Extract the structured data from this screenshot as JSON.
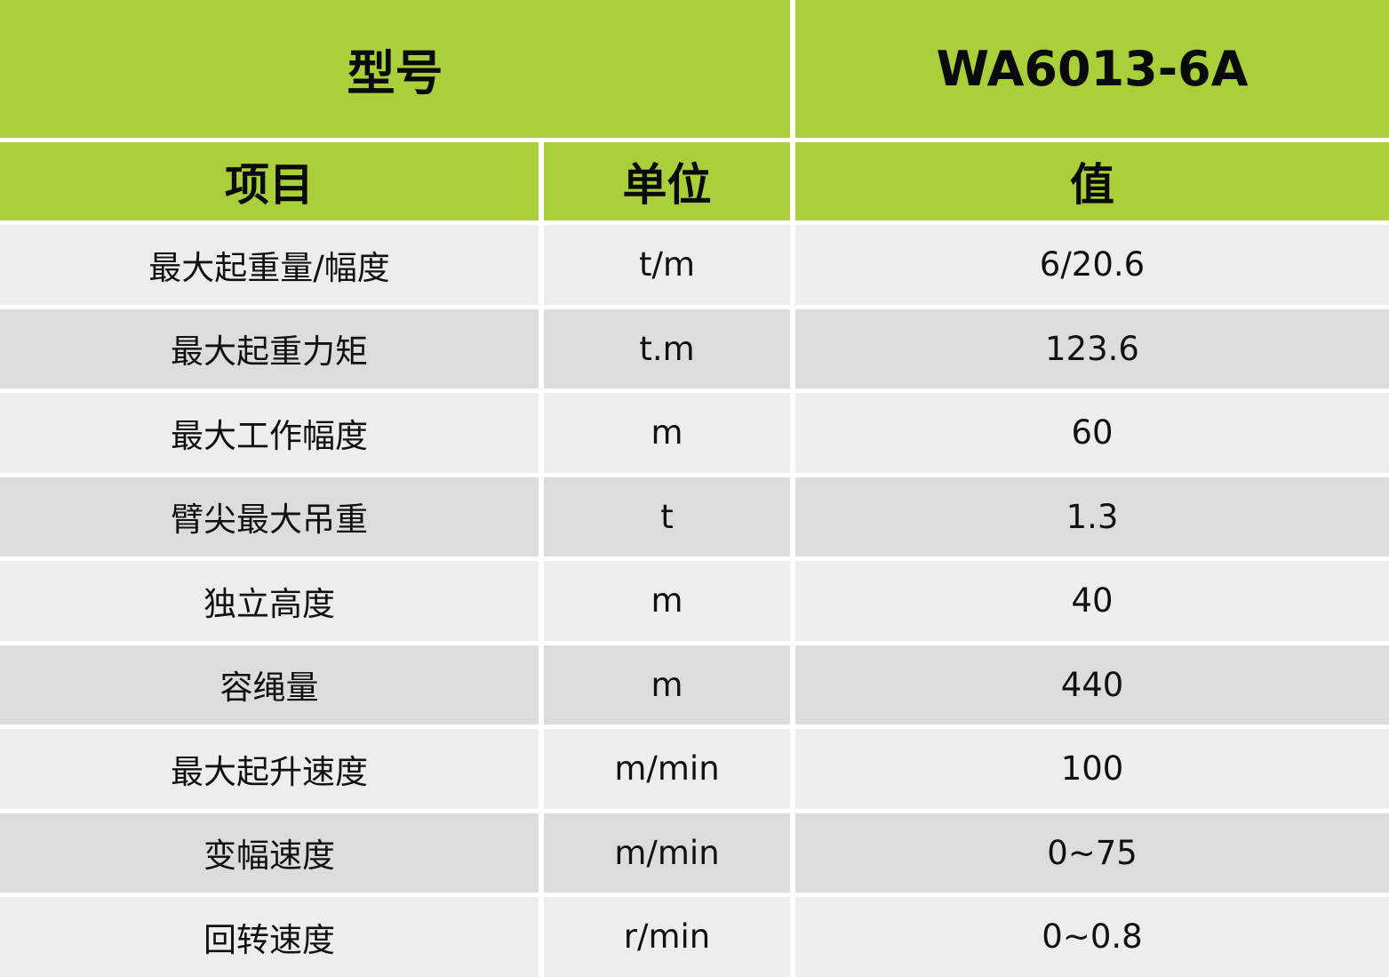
{
  "header": {
    "model_label": "型号",
    "model_value": "WA6013-6A"
  },
  "columns": {
    "item": "项目",
    "unit": "单位",
    "value": "值"
  },
  "rows": [
    {
      "item": "最大起重量/幅度",
      "unit": "t/m",
      "value": "6/20.6"
    },
    {
      "item": "最大起重力矩",
      "unit": "t.m",
      "value": "123.6"
    },
    {
      "item": "最大工作幅度",
      "unit": "m",
      "value": "60"
    },
    {
      "item": "臂尖最大吊重",
      "unit": "t",
      "value": "1.3"
    },
    {
      "item": "独立高度",
      "unit": "m",
      "value": "40"
    },
    {
      "item": "容绳量",
      "unit": "m",
      "value": "440"
    },
    {
      "item": "最大起升速度",
      "unit": "m/min",
      "value": "100"
    },
    {
      "item": "变幅速度",
      "unit": "m/min",
      "value": "0~75"
    },
    {
      "item": "回转速度",
      "unit": "r/min",
      "value": "0~0.8"
    }
  ],
  "colors": {
    "header_green": "#a9cf3a",
    "row_light": "#ededed",
    "row_dark": "#dcdcdc"
  }
}
